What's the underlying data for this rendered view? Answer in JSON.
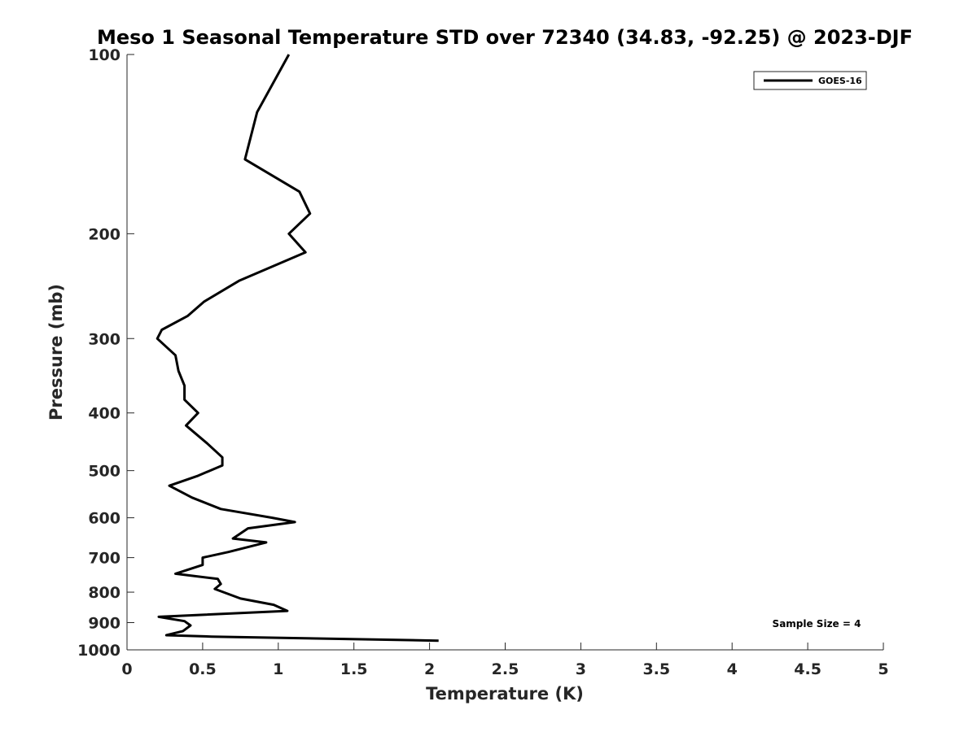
{
  "chart_data": {
    "type": "line",
    "title": "Meso 1 Seasonal Temperature STD over 72340 (34.83, -92.25) @ 2023-DJF",
    "xlabel": "Temperature (K)",
    "ylabel": "Pressure (mb)",
    "xlim": [
      0,
      5
    ],
    "ylim": [
      1000,
      100
    ],
    "y_scale": "log",
    "y_reversed": true,
    "x_ticks": [
      "0",
      "0.5",
      "1",
      "1.5",
      "2",
      "2.5",
      "3",
      "3.5",
      "4",
      "4.5",
      "5"
    ],
    "y_ticks": [
      "100",
      "200",
      "300",
      "400",
      "500",
      "600",
      "700",
      "800",
      "900",
      "1000"
    ],
    "grid": false,
    "legend_position": "top-right",
    "series": [
      {
        "name": "GOES-16",
        "color": "#000000",
        "points": [
          [
            1.07,
            100
          ],
          [
            0.86,
            125
          ],
          [
            0.78,
            150
          ],
          [
            1.14,
            170
          ],
          [
            1.21,
            185
          ],
          [
            1.07,
            200
          ],
          [
            1.18,
            215
          ],
          [
            0.74,
            240
          ],
          [
            0.51,
            260
          ],
          [
            0.4,
            275
          ],
          [
            0.23,
            290
          ],
          [
            0.2,
            300
          ],
          [
            0.32,
            320
          ],
          [
            0.34,
            340
          ],
          [
            0.38,
            360
          ],
          [
            0.38,
            380
          ],
          [
            0.47,
            400
          ],
          [
            0.39,
            420
          ],
          [
            0.53,
            450
          ],
          [
            0.63,
            475
          ],
          [
            0.63,
            490
          ],
          [
            0.47,
            510
          ],
          [
            0.28,
            530
          ],
          [
            0.43,
            555
          ],
          [
            0.62,
            580
          ],
          [
            0.96,
            600
          ],
          [
            1.11,
            610
          ],
          [
            0.8,
            625
          ],
          [
            0.7,
            650
          ],
          [
            0.92,
            660
          ],
          [
            0.67,
            685
          ],
          [
            0.5,
            700
          ],
          [
            0.5,
            720
          ],
          [
            0.32,
            745
          ],
          [
            0.6,
            760
          ],
          [
            0.62,
            775
          ],
          [
            0.58,
            790
          ],
          [
            0.75,
            820
          ],
          [
            0.97,
            840
          ],
          [
            1.06,
            860
          ],
          [
            0.21,
            880
          ],
          [
            0.38,
            895
          ],
          [
            0.42,
            910
          ],
          [
            0.37,
            930
          ],
          [
            0.26,
            945
          ],
          [
            0.56,
            950
          ],
          [
            2.06,
            965
          ]
        ]
      }
    ],
    "annotations": [
      "Sample Size = 4"
    ]
  }
}
